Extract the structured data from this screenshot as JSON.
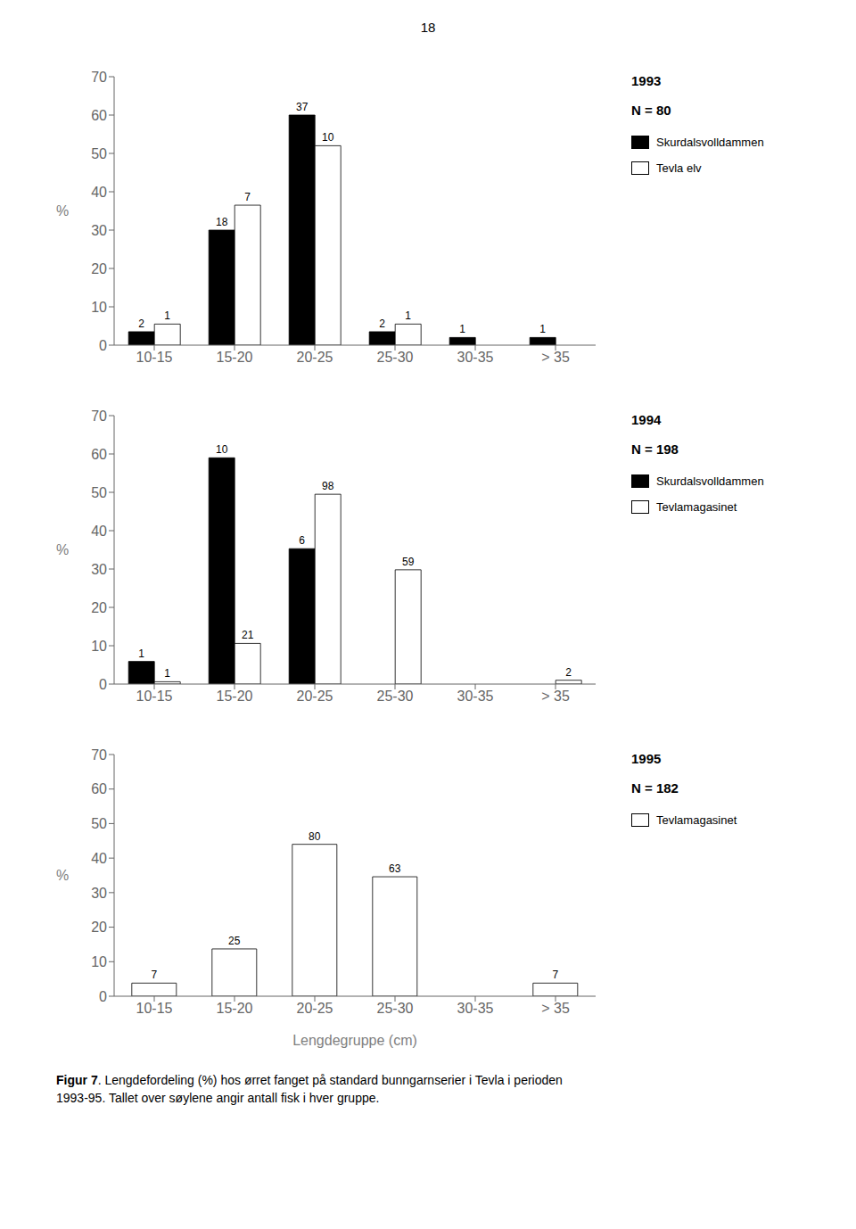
{
  "chart_data": [
    {
      "type": "bar",
      "title": "1993",
      "subtitle": "N = 80",
      "categories": [
        "10-15",
        "15-20",
        "20-25",
        "25-30",
        "30-35",
        "> 35"
      ],
      "series": [
        {
          "name": "Skurdalsvolldammen",
          "color": "#000000",
          "values": [
            3.5,
            30.0,
            60.0,
            3.5,
            2.0,
            2.0
          ],
          "counts": [
            2,
            18,
            37,
            2,
            1,
            1
          ]
        },
        {
          "name": "Tevla elv",
          "color": "#ffffff",
          "values": [
            5.5,
            36.5,
            52.0,
            5.5,
            0,
            0
          ],
          "counts": [
            1,
            7,
            10,
            1,
            null,
            null
          ]
        }
      ],
      "ylabel": "%",
      "ylim": [
        0,
        70
      ],
      "yticks": [
        0,
        10,
        20,
        30,
        40,
        50,
        60,
        70
      ],
      "grid": false
    },
    {
      "type": "bar",
      "title": "1994",
      "subtitle": "N = 198",
      "categories": [
        "10-15",
        "15-20",
        "20-25",
        "25-30",
        "30-35",
        "> 35"
      ],
      "series": [
        {
          "name": "Skurdalsvolldammen",
          "color": "#000000",
          "values": [
            5.9,
            59.0,
            35.3,
            0,
            0,
            0
          ],
          "counts": [
            1,
            10,
            6,
            null,
            null,
            null
          ]
        },
        {
          "name": "Tevlamagasinet",
          "color": "#ffffff",
          "values": [
            0.6,
            10.6,
            49.5,
            29.8,
            0,
            1.0
          ],
          "counts": [
            1,
            21,
            98,
            59,
            null,
            2
          ]
        }
      ],
      "ylabel": "%",
      "ylim": [
        0,
        70
      ],
      "yticks": [
        0,
        10,
        20,
        30,
        40,
        50,
        60,
        70
      ],
      "grid": false
    },
    {
      "type": "bar",
      "title": "1995",
      "subtitle": "N = 182",
      "categories": [
        "10-15",
        "15-20",
        "20-25",
        "25-30",
        "30-35",
        "> 35"
      ],
      "series": [
        {
          "name": "Tevlamagasinet",
          "color": "#ffffff",
          "values": [
            3.8,
            13.7,
            44.0,
            34.6,
            0,
            3.8
          ],
          "counts": [
            7,
            25,
            80,
            63,
            null,
            7
          ]
        }
      ],
      "xlabel": "Lengdegruppe (cm)",
      "ylabel": "%",
      "ylim": [
        0,
        70
      ],
      "yticks": [
        0,
        10,
        20,
        30,
        40,
        50,
        60,
        70
      ],
      "grid": false
    }
  ],
  "annotations": [
    "18",
    "Figur 7",
    ". Lengdefordeling (%) hos ørret fanget på standard bunngarnserier i Tevla i perioden\n1993-95. Tallet over søylene angir antall fisk i hver gruppe."
  ]
}
